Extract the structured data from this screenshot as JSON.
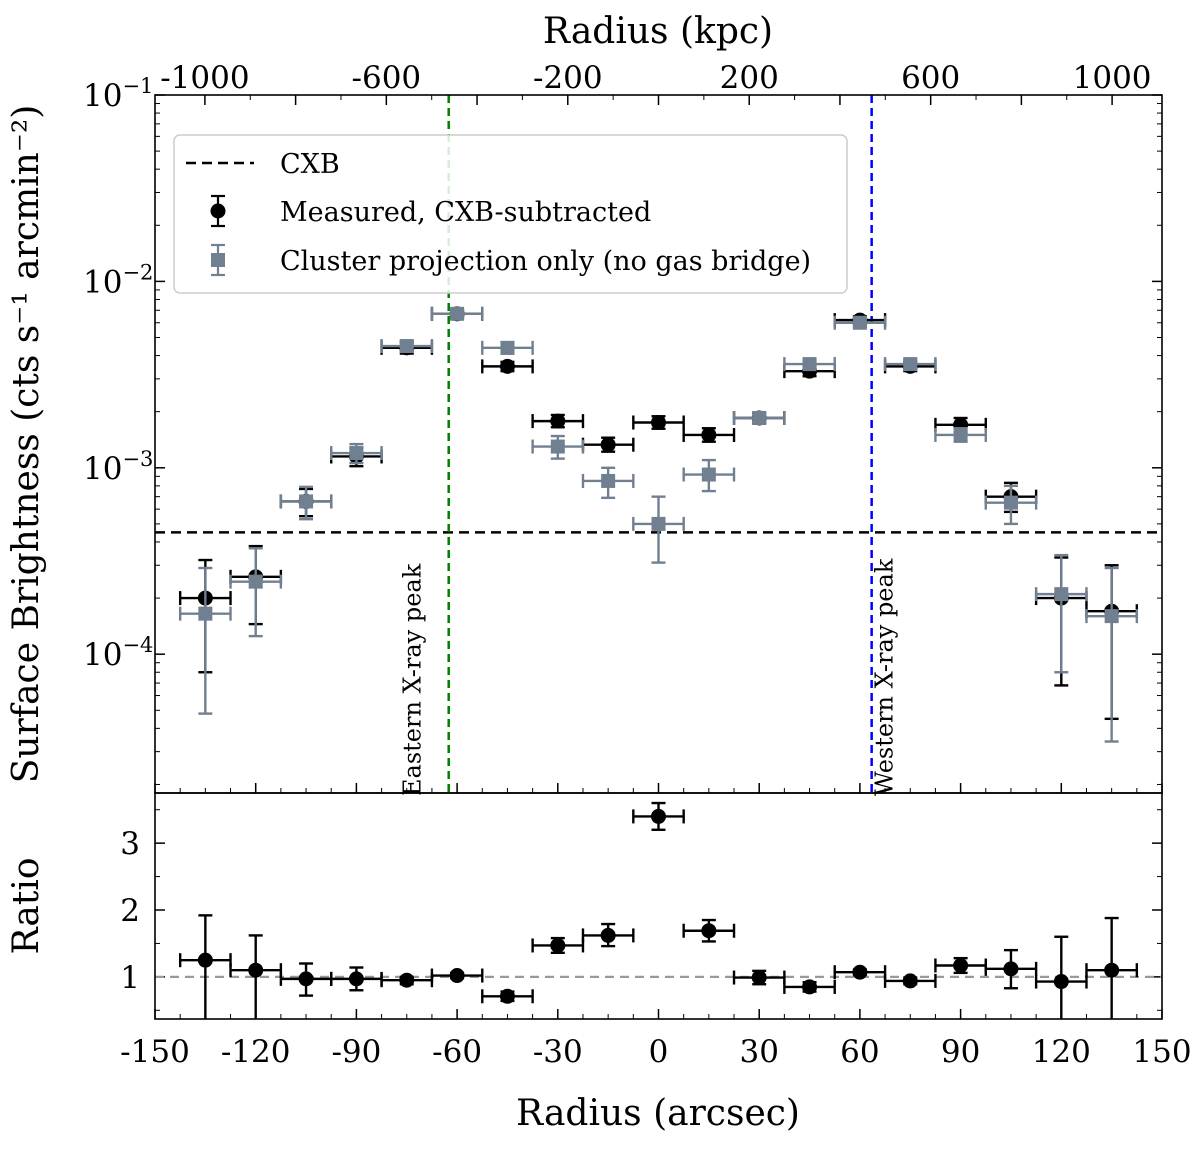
{
  "chart_data": {
    "type": "scatter",
    "x_label_bottom": "Radius (arcsec)",
    "x_label_top": "Radius (kpc)",
    "xlim": [
      -150,
      150
    ],
    "x_ticks": [
      -150,
      -120,
      -90,
      -60,
      -30,
      0,
      30,
      60,
      90,
      120,
      150
    ],
    "x_tick_labels": [
      "-150",
      "-120",
      "-90",
      "-60",
      "-30",
      "0",
      "30",
      "60",
      "90",
      "120",
      "150"
    ],
    "top_ticks_kpc": [
      -1000,
      -600,
      -200,
      200,
      600,
      1000
    ],
    "top_tick_labels": [
      "-1000",
      "-600",
      "-200",
      "200",
      "600",
      "1000"
    ],
    "top_range_kpc": [
      -1110,
      1110
    ],
    "upper_panel": {
      "ylabel": "Surface Brightness (cts s⁻¹ arcmin⁻²)",
      "yscale": "log",
      "ylim": [
        1.8e-05,
        0.1
      ],
      "y_tick_labels": [
        {
          "base": "10",
          "exp": "−1",
          "value": 0.1
        },
        {
          "base": "10",
          "exp": "−2",
          "value": 0.01
        },
        {
          "base": "10",
          "exp": "−3",
          "value": 0.001
        },
        {
          "base": "10",
          "exp": "−4",
          "value": 0.0001
        }
      ],
      "cxb_level": 0.00045,
      "series": [
        {
          "name": "Measured, CXB-subtracted",
          "color": "#000000",
          "marker": "circle",
          "points": [
            {
              "x": -135,
              "y": 0.0002,
              "ylo": 8e-05,
              "yhi": 0.00032,
              "xerr": 7.5
            },
            {
              "x": -120,
              "y": 0.00026,
              "ylo": 0.000145,
              "yhi": 0.00038,
              "xerr": 7.5
            },
            {
              "x": -105,
              "y": 0.00066,
              "ylo": 0.00055,
              "yhi": 0.00077,
              "xerr": 7.5
            },
            {
              "x": -90,
              "y": 0.00115,
              "ylo": 0.00102,
              "yhi": 0.00128,
              "xerr": 7.5
            },
            {
              "x": -75,
              "y": 0.0044,
              "ylo": 0.0041,
              "yhi": 0.0047,
              "xerr": 7.5
            },
            {
              "x": -60,
              "y": 0.0067,
              "ylo": 0.0064,
              "yhi": 0.007,
              "xerr": 7.5
            },
            {
              "x": -45,
              "y": 0.0035,
              "ylo": 0.0033,
              "yhi": 0.0037,
              "xerr": 7.5
            },
            {
              "x": -30,
              "y": 0.00178,
              "ylo": 0.00165,
              "yhi": 0.00192,
              "xerr": 7.5
            },
            {
              "x": -15,
              "y": 0.00133,
              "ylo": 0.00122,
              "yhi": 0.00145,
              "xerr": 7.5
            },
            {
              "x": 0,
              "y": 0.00175,
              "ylo": 0.00162,
              "yhi": 0.00189,
              "xerr": 7.5
            },
            {
              "x": 15,
              "y": 0.0015,
              "ylo": 0.00138,
              "yhi": 0.00163,
              "xerr": 7.5
            },
            {
              "x": 30,
              "y": 0.00185,
              "ylo": 0.00175,
              "yhi": 0.00196,
              "xerr": 7.5
            },
            {
              "x": 45,
              "y": 0.0033,
              "ylo": 0.0031,
              "yhi": 0.0035,
              "xerr": 7.5
            },
            {
              "x": 60,
              "y": 0.0062,
              "ylo": 0.0059,
              "yhi": 0.0065,
              "xerr": 7.5
            },
            {
              "x": 75,
              "y": 0.0035,
              "ylo": 0.0033,
              "yhi": 0.0037,
              "xerr": 7.5
            },
            {
              "x": 90,
              "y": 0.0017,
              "ylo": 0.00155,
              "yhi": 0.00185,
              "xerr": 7.5
            },
            {
              "x": 105,
              "y": 0.0007,
              "ylo": 0.00058,
              "yhi": 0.00083,
              "xerr": 7.5
            },
            {
              "x": 120,
              "y": 0.0002,
              "ylo": 6.8e-05,
              "yhi": 0.00033,
              "xerr": 7.5
            },
            {
              "x": 135,
              "y": 0.00017,
              "ylo": 4.5e-05,
              "yhi": 0.0003,
              "xerr": 7.5
            }
          ]
        },
        {
          "name": "Cluster projection only (no gas bridge)",
          "color": "#708090",
          "marker": "square",
          "points": [
            {
              "x": -135,
              "y": 0.000165,
              "ylo": 4.8e-05,
              "yhi": 0.00029,
              "xerr": 7.5
            },
            {
              "x": -120,
              "y": 0.000245,
              "ylo": 0.000125,
              "yhi": 0.00037,
              "xerr": 7.5
            },
            {
              "x": -105,
              "y": 0.00066,
              "ylo": 0.00053,
              "yhi": 0.00079,
              "xerr": 7.5
            },
            {
              "x": -90,
              "y": 0.0012,
              "ylo": 0.00106,
              "yhi": 0.00134,
              "xerr": 7.5
            },
            {
              "x": -75,
              "y": 0.0045,
              "ylo": 0.0042,
              "yhi": 0.0048,
              "xerr": 7.5
            },
            {
              "x": -60,
              "y": 0.0067,
              "ylo": 0.0064,
              "yhi": 0.007,
              "xerr": 7.5
            },
            {
              "x": -45,
              "y": 0.0044,
              "ylo": 0.0041,
              "yhi": 0.0047,
              "xerr": 7.5
            },
            {
              "x": -30,
              "y": 0.0013,
              "ylo": 0.00112,
              "yhi": 0.00148,
              "xerr": 7.5
            },
            {
              "x": -15,
              "y": 0.00085,
              "ylo": 0.00069,
              "yhi": 0.001,
              "xerr": 7.5
            },
            {
              "x": 0,
              "y": 0.0005,
              "ylo": 0.00031,
              "yhi": 0.0007,
              "xerr": 7.5
            },
            {
              "x": 15,
              "y": 0.00092,
              "ylo": 0.00075,
              "yhi": 0.0011,
              "xerr": 7.5
            },
            {
              "x": 30,
              "y": 0.00185,
              "ylo": 0.00173,
              "yhi": 0.00198,
              "xerr": 7.5
            },
            {
              "x": 45,
              "y": 0.0036,
              "ylo": 0.0034,
              "yhi": 0.0038,
              "xerr": 7.5
            },
            {
              "x": 60,
              "y": 0.006,
              "ylo": 0.0057,
              "yhi": 0.0063,
              "xerr": 7.5
            },
            {
              "x": 75,
              "y": 0.0036,
              "ylo": 0.0034,
              "yhi": 0.0038,
              "xerr": 7.5
            },
            {
              "x": 90,
              "y": 0.0015,
              "ylo": 0.00138,
              "yhi": 0.00163,
              "xerr": 7.5
            },
            {
              "x": 105,
              "y": 0.00065,
              "ylo": 0.0005,
              "yhi": 0.0008,
              "xerr": 7.5
            },
            {
              "x": 120,
              "y": 0.00021,
              "ylo": 8e-05,
              "yhi": 0.00034,
              "xerr": 7.5
            },
            {
              "x": 135,
              "y": 0.00016,
              "ylo": 3.4e-05,
              "yhi": 0.00029,
              "xerr": 7.5
            }
          ]
        }
      ],
      "vlines": [
        {
          "name": "Eastern X-ray peak",
          "x": -62.5,
          "color": "#008000"
        },
        {
          "name": "Western X-ray peak",
          "x": 63.5,
          "color": "#0000ff"
        }
      ],
      "legend": {
        "position": "upper-left",
        "entries": [
          "CXB",
          "Measured, CXB-subtracted",
          "Cluster projection only (no gas bridge)"
        ]
      }
    },
    "lower_panel": {
      "ylabel": "Ratio",
      "yscale": "linear",
      "ylim": [
        0.37,
        3.75
      ],
      "y_ticks": [
        1,
        2,
        3
      ],
      "y_tick_labels": [
        "1",
        "2",
        "3"
      ],
      "reference_line": 1,
      "reference_color": "#999999",
      "points": [
        {
          "x": -135,
          "y": 1.25,
          "ylo": 0.0,
          "yhi": 1.92,
          "xerr": 7.5
        },
        {
          "x": -120,
          "y": 1.1,
          "ylo": 0.0,
          "yhi": 1.62,
          "xerr": 7.5
        },
        {
          "x": -105,
          "y": 0.97,
          "ylo": 0.72,
          "yhi": 1.2,
          "xerr": 7.5
        },
        {
          "x": -90,
          "y": 0.97,
          "ylo": 0.8,
          "yhi": 1.14,
          "xerr": 7.5
        },
        {
          "x": -75,
          "y": 0.95,
          "ylo": 0.89,
          "yhi": 1.0,
          "xerr": 7.5
        },
        {
          "x": -60,
          "y": 1.02,
          "ylo": 0.98,
          "yhi": 1.06,
          "xerr": 7.5
        },
        {
          "x": -45,
          "y": 0.71,
          "ylo": 0.64,
          "yhi": 0.78,
          "xerr": 7.5
        },
        {
          "x": -30,
          "y": 1.47,
          "ylo": 1.36,
          "yhi": 1.58,
          "xerr": 7.5
        },
        {
          "x": -15,
          "y": 1.62,
          "ylo": 1.46,
          "yhi": 1.79,
          "xerr": 7.5
        },
        {
          "x": 0,
          "y": 3.4,
          "ylo": 3.2,
          "yhi": 3.6,
          "xerr": 7.5
        },
        {
          "x": 15,
          "y": 1.69,
          "ylo": 1.53,
          "yhi": 1.85,
          "xerr": 7.5
        },
        {
          "x": 30,
          "y": 0.99,
          "ylo": 0.89,
          "yhi": 1.09,
          "xerr": 7.5
        },
        {
          "x": 45,
          "y": 0.85,
          "ylo": 0.78,
          "yhi": 0.92,
          "xerr": 7.5
        },
        {
          "x": 60,
          "y": 1.07,
          "ylo": 1.03,
          "yhi": 1.11,
          "xerr": 7.5
        },
        {
          "x": 75,
          "y": 0.94,
          "ylo": 0.89,
          "yhi": 0.99,
          "xerr": 7.5
        },
        {
          "x": 90,
          "y": 1.17,
          "ylo": 1.06,
          "yhi": 1.28,
          "xerr": 7.5
        },
        {
          "x": 105,
          "y": 1.12,
          "ylo": 0.83,
          "yhi": 1.4,
          "xerr": 7.5
        },
        {
          "x": 120,
          "y": 0.93,
          "ylo": 0.3,
          "yhi": 1.6,
          "xerr": 7.5
        },
        {
          "x": 135,
          "y": 1.1,
          "ylo": 0.3,
          "yhi": 1.88,
          "xerr": 7.5
        }
      ]
    }
  }
}
